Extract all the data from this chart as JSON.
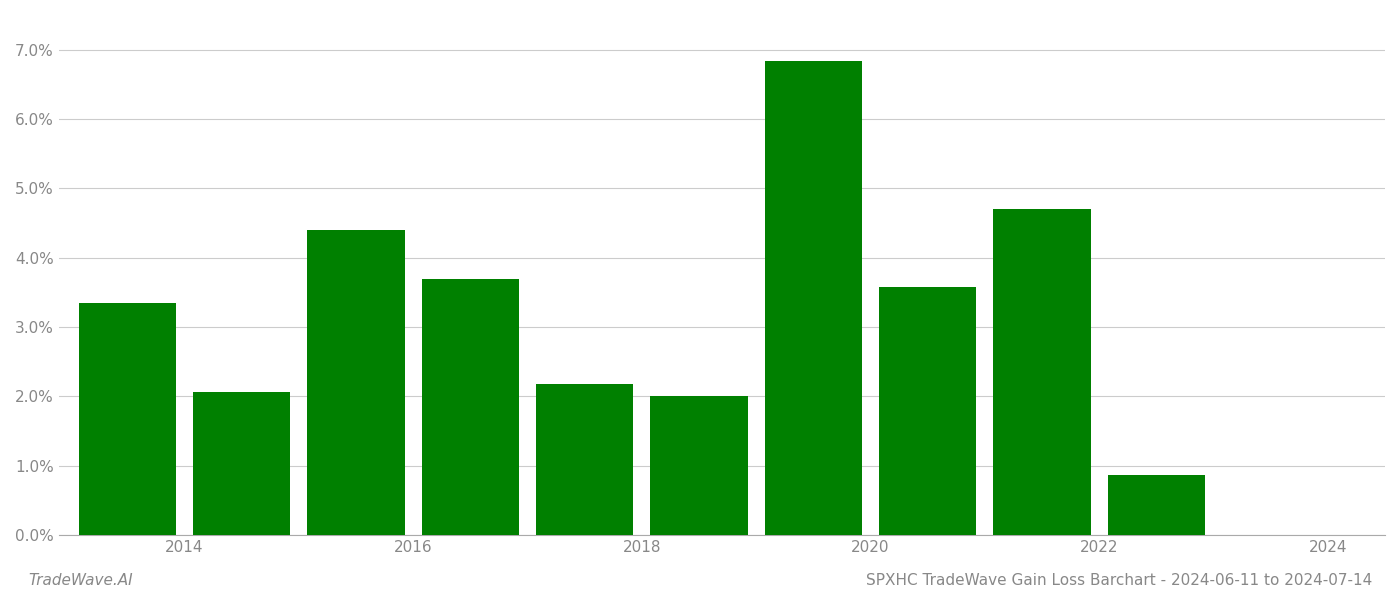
{
  "years": [
    2014,
    2015,
    2016,
    2017,
    2018,
    2019,
    2020,
    2021,
    2022,
    2023,
    2024
  ],
  "values": [
    0.0335,
    0.0207,
    0.044,
    0.037,
    0.0218,
    0.02,
    0.0684,
    0.0358,
    0.047,
    0.0087,
    0.0
  ],
  "bar_color": "#008000",
  "background_color": "#ffffff",
  "title": "SPXHC TradeWave Gain Loss Barchart - 2024-06-11 to 2024-07-14",
  "watermark": "TradeWave.AI",
  "ylim": [
    0.0,
    0.075
  ],
  "yticks": [
    0.0,
    0.01,
    0.02,
    0.03,
    0.04,
    0.05,
    0.06,
    0.07
  ],
  "xtick_positions": [
    2014.5,
    2016.5,
    2018.5,
    2020.5,
    2022.5,
    2024.5
  ],
  "xtick_labels": [
    "2014",
    "2016",
    "2018",
    "2020",
    "2022",
    "2024"
  ],
  "grid_color": "#cccccc",
  "title_fontsize": 11,
  "watermark_fontsize": 11,
  "tick_label_color": "#888888",
  "axis_color": "#aaaaaa",
  "bar_width": 0.85
}
